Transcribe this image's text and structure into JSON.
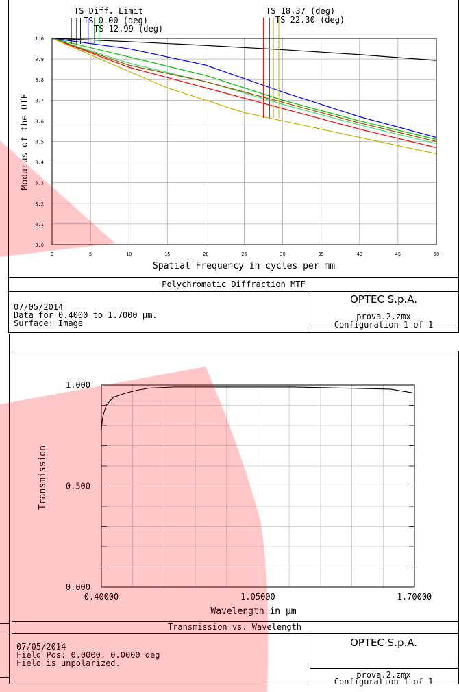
{
  "mtf": {
    "chart_data": {
      "type": "line",
      "title": "Polychromatic Diffraction MTF",
      "xlabel": "Spatial Frequency in cycles per mm",
      "ylabel": "Modulus of the OTF",
      "xlim": [
        0,
        50
      ],
      "ylim": [
        0,
        1.0
      ],
      "xticks": [
        "0",
        "5",
        "10",
        "15",
        "20",
        "25",
        "30",
        "35",
        "40",
        "45",
        "50"
      ],
      "yticks": [
        "0.0",
        "0.1",
        "0.2",
        "0.3",
        "0.4",
        "0.5",
        "0.6",
        "0.7",
        "0.8",
        "0.9",
        "1.0"
      ],
      "grid": true,
      "legend_labels": [
        "TS Diff. Limit",
        "TS 0.00 (deg)",
        "TS 12.99 (deg)",
        "TS 18.37 (deg)",
        "TS 22.30 (deg)"
      ],
      "series": [
        {
          "color": "#000000",
          "x": [
            0,
            10,
            20,
            30,
            40,
            50
          ],
          "y": [
            1.0,
            0.984,
            0.966,
            0.945,
            0.921,
            0.893
          ]
        },
        {
          "color": "#0000ff",
          "x": [
            0,
            10,
            20,
            30,
            40,
            50
          ],
          "y": [
            1.0,
            0.95,
            0.87,
            0.74,
            0.62,
            0.52
          ]
        },
        {
          "color": "#00c000",
          "x": [
            0,
            10,
            20,
            30,
            40,
            50
          ],
          "y": [
            1.0,
            0.91,
            0.82,
            0.7,
            0.6,
            0.51
          ]
        },
        {
          "color": "#40e070",
          "x": [
            0,
            10,
            20,
            30,
            40,
            50
          ],
          "y": [
            1.0,
            0.88,
            0.79,
            0.68,
            0.58,
            0.49
          ]
        },
        {
          "color": "#a05000",
          "x": [
            0,
            10,
            20,
            30,
            40,
            50
          ],
          "y": [
            1.0,
            0.87,
            0.79,
            0.69,
            0.59,
            0.5
          ]
        },
        {
          "color": "#ff0000",
          "x": [
            0,
            10,
            20,
            30,
            40,
            50
          ],
          "y": [
            1.0,
            0.86,
            0.76,
            0.66,
            0.56,
            0.47
          ]
        },
        {
          "color": "#c8b400",
          "x": [
            0,
            5,
            10,
            15,
            20,
            25,
            30,
            40,
            50
          ],
          "y": [
            1.0,
            0.92,
            0.84,
            0.76,
            0.7,
            0.64,
            0.6,
            0.52,
            0.44
          ]
        }
      ],
      "legend_markers": [
        {
          "x": 2.5,
          "color": "#000000"
        },
        {
          "x": 3.2,
          "color": "#000000"
        },
        {
          "x": 3.7,
          "color": "#0000ff"
        },
        {
          "x": 4.7,
          "color": "#0000ff"
        },
        {
          "x": 5.5,
          "color": "#00c000"
        },
        {
          "x": 6.1,
          "color": "#40e070"
        },
        {
          "x": 27.5,
          "color": "#ff0000"
        },
        {
          "x": 28.3,
          "color": "#a05000"
        },
        {
          "x": 28.8,
          "color": "#c8b400"
        },
        {
          "x": 29.5,
          "color": "#c8b400"
        }
      ]
    },
    "caption": {
      "date": "07/05/2014",
      "line2": "Data for 0.4000 to 1.7000 µm.",
      "line3": "Surface: Image",
      "company": "OPTEC S.p.A.",
      "file": "prova.2.zmx",
      "config": "Configuration 1 of 1"
    }
  },
  "trans": {
    "chart_data": {
      "type": "line",
      "title": "Transmission vs. Wavelength",
      "xlabel": "Wavelength in µm",
      "ylabel": "Transmission",
      "xlim": [
        0.4,
        1.7
      ],
      "ylim": [
        0,
        1.0
      ],
      "xticks": [
        "0.40000",
        "1.05000",
        "1.70000"
      ],
      "yticks": [
        "0.000",
        "0.500",
        "1.000"
      ],
      "grid": true,
      "series": [
        {
          "color": "#000000",
          "x": [
            0.4,
            0.405,
            0.42,
            0.45,
            0.5,
            0.55,
            0.6,
            0.7,
            0.8,
            1.0,
            1.2,
            1.4,
            1.6,
            1.7
          ],
          "y": [
            0.78,
            0.84,
            0.9,
            0.94,
            0.96,
            0.975,
            0.985,
            0.99,
            0.99,
            0.99,
            0.99,
            0.985,
            0.98,
            0.96
          ]
        }
      ]
    },
    "caption": {
      "date": "07/05/2014",
      "line2": "Field Pos: 0.0000, 0.0000 deg",
      "line3": "Field is unpolarized.",
      "company": "OPTEC S.p.A.",
      "file": "prova.2.zmx",
      "config": "Configuration 1 of 1"
    }
  },
  "colors": {
    "overlay_red": "#ff0000"
  }
}
